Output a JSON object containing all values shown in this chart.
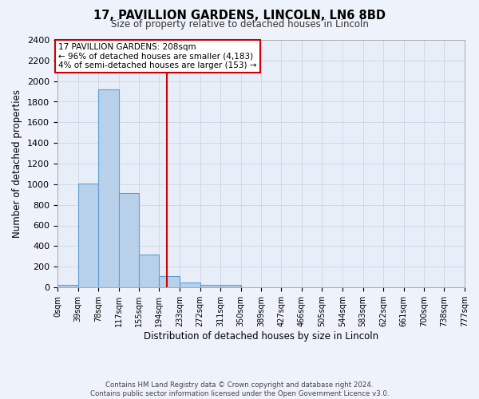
{
  "title_line1": "17, PAVILLION GARDENS, LINCOLN, LN6 8BD",
  "title_line2": "Size of property relative to detached houses in Lincoln",
  "xlabel": "Distribution of detached houses by size in Lincoln",
  "ylabel": "Number of detached properties",
  "bar_edges": [
    0,
    39,
    78,
    117,
    155,
    194,
    233,
    272,
    311,
    350,
    389,
    427,
    466,
    505,
    544,
    583,
    622,
    661,
    700,
    738,
    777
  ],
  "bar_heights": [
    20,
    1010,
    1920,
    910,
    320,
    110,
    50,
    25,
    25,
    0,
    0,
    0,
    0,
    0,
    0,
    0,
    0,
    0,
    0,
    0
  ],
  "bar_color": "#b8d0ea",
  "bar_edge_color": "#5a9fd4",
  "bar_linewidth": 0.8,
  "vline_x": 208,
  "vline_color": "#cc0000",
  "vline_linewidth": 1.5,
  "ylim": [
    0,
    2400
  ],
  "yticks": [
    0,
    200,
    400,
    600,
    800,
    1000,
    1200,
    1400,
    1600,
    1800,
    2000,
    2200,
    2400
  ],
  "annotation_text": "17 PAVILLION GARDENS: 208sqm\n← 96% of detached houses are smaller (4,183)\n4% of semi-detached houses are larger (153) →",
  "annotation_box_color": "#ffffff",
  "annotation_box_edge_color": "#cc0000",
  "grid_color": "#ccd6e8",
  "bg_color": "#e8eef8",
  "footer_text": "Contains HM Land Registry data © Crown copyright and database right 2024.\nContains public sector information licensed under the Open Government Licence v3.0.",
  "tick_labels": [
    "0sqm",
    "39sqm",
    "78sqm",
    "117sqm",
    "155sqm",
    "194sqm",
    "233sqm",
    "272sqm",
    "311sqm",
    "350sqm",
    "389sqm",
    "427sqm",
    "466sqm",
    "505sqm",
    "544sqm",
    "583sqm",
    "622sqm",
    "661sqm",
    "700sqm",
    "738sqm",
    "777sqm"
  ]
}
